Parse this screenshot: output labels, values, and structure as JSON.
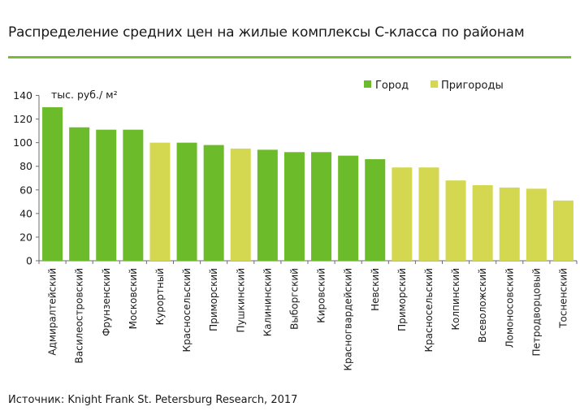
{
  "title": "Распределение средних цен на жилые комплексы С-класса по районам",
  "source": "Источник: Knight Frank St. Petersburg Research, 2017",
  "colors": {
    "rule": "#77bd3a",
    "axis": "#6d6d6d",
    "city": "#6cbb2b",
    "suburb": "#d4d851"
  },
  "chart_data": {
    "type": "bar",
    "title": "Распределение средних цен на жилые комплексы С-класса по районам",
    "ylabel": "тыс. руб./ м²",
    "ylim": [
      0,
      140
    ],
    "yticks": [
      0,
      20,
      40,
      60,
      80,
      100,
      120,
      140
    ],
    "grid": false,
    "legend_position": "top-right",
    "legend": [
      {
        "key": "city",
        "label": "Город"
      },
      {
        "key": "suburb",
        "label": "Пригороды"
      }
    ],
    "categories": [
      "Адмиралтейский",
      "Василеостровский",
      "Фрунзенский",
      "Московский",
      "Курортный",
      "Красносельский",
      "Приморский",
      "Пушкинский",
      "Калининский",
      "Выборгский",
      "Кировский",
      "Красногвардейский",
      "Невский",
      "Приморский",
      "Красносельский",
      "Колпинский",
      "Всеволожский",
      "Ломоносовский",
      "Петродворцовый",
      "Тосненский"
    ],
    "values": [
      130,
      113,
      111,
      111,
      100,
      100,
      98,
      95,
      94,
      92,
      92,
      89,
      86,
      79,
      79,
      68,
      64,
      62,
      61,
      51
    ],
    "groups": [
      "city",
      "city",
      "city",
      "city",
      "suburb",
      "city",
      "city",
      "suburb",
      "city",
      "city",
      "city",
      "city",
      "city",
      "suburb",
      "suburb",
      "suburb",
      "suburb",
      "suburb",
      "suburb",
      "suburb"
    ]
  }
}
